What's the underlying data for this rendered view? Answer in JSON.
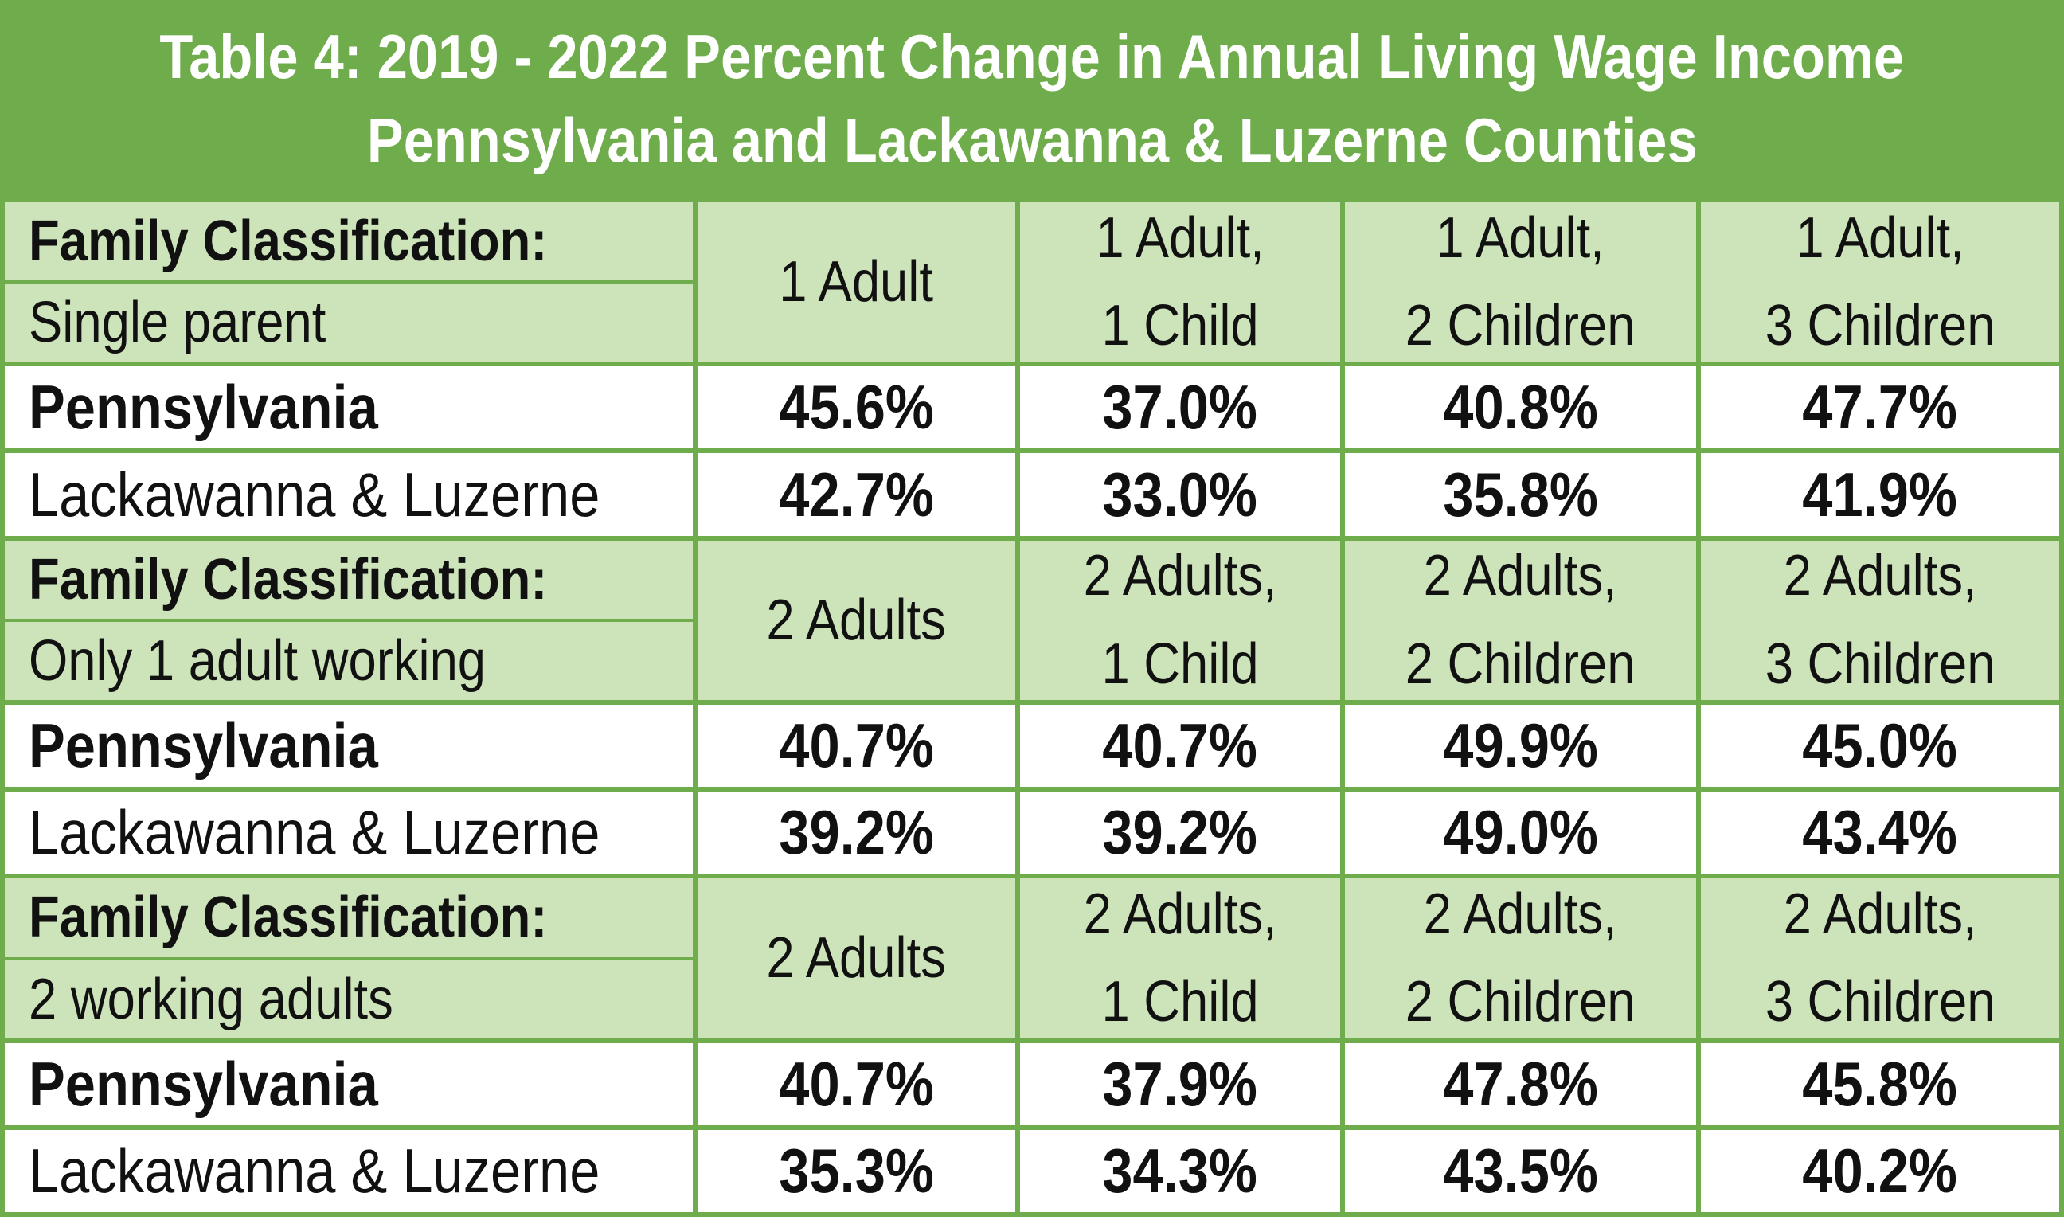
{
  "colors": {
    "green": "#6FAC4B",
    "light_green": "#CDE3BA",
    "title_text": "#FFFFFF",
    "body_text": "#111111",
    "data_row_bg": "#FFFFFF"
  },
  "chart_data": {
    "type": "table",
    "title": "Table 4: 2019 - 2022 Percent Change in Annual Living Wage Income",
    "subtitle": "Pennsylvania and Lackawanna & Luzerne Counties",
    "sections": [
      {
        "classification_label": "Family Classification:",
        "classification_value": "Single parent",
        "col_headers": [
          [
            "1 Adult"
          ],
          [
            "1 Adult,",
            "1 Child"
          ],
          [
            "1 Adult,",
            "2 Children"
          ],
          [
            "1 Adult,",
            "3 Children"
          ]
        ],
        "rows": [
          {
            "label": "Pennsylvania",
            "values": [
              "45.6%",
              "37.0%",
              "40.8%",
              "47.7%"
            ]
          },
          {
            "label": "Lackawanna & Luzerne",
            "values": [
              "42.7%",
              "33.0%",
              "35.8%",
              "41.9%"
            ]
          }
        ]
      },
      {
        "classification_label": "Family Classification:",
        "classification_value": "Only 1 adult working",
        "col_headers": [
          [
            "2 Adults"
          ],
          [
            "2 Adults,",
            "1 Child"
          ],
          [
            "2 Adults,",
            "2 Children"
          ],
          [
            "2 Adults,",
            "3 Children"
          ]
        ],
        "rows": [
          {
            "label": "Pennsylvania",
            "values": [
              "40.7%",
              "40.7%",
              "49.9%",
              "45.0%"
            ]
          },
          {
            "label": "Lackawanna & Luzerne",
            "values": [
              "39.2%",
              "39.2%",
              "49.0%",
              "43.4%"
            ]
          }
        ]
      },
      {
        "classification_label": "Family Classification:",
        "classification_value": "2 working adults",
        "col_headers": [
          [
            "2 Adults"
          ],
          [
            "2 Adults,",
            "1 Child"
          ],
          [
            "2 Adults,",
            "2 Children"
          ],
          [
            "2 Adults,",
            "3 Children"
          ]
        ],
        "rows": [
          {
            "label": "Pennsylvania",
            "values": [
              "40.7%",
              "37.9%",
              "47.8%",
              "45.8%"
            ]
          },
          {
            "label": "Lackawanna & Luzerne",
            "values": [
              "35.3%",
              "34.3%",
              "43.5%",
              "40.2%"
            ]
          }
        ]
      }
    ]
  }
}
